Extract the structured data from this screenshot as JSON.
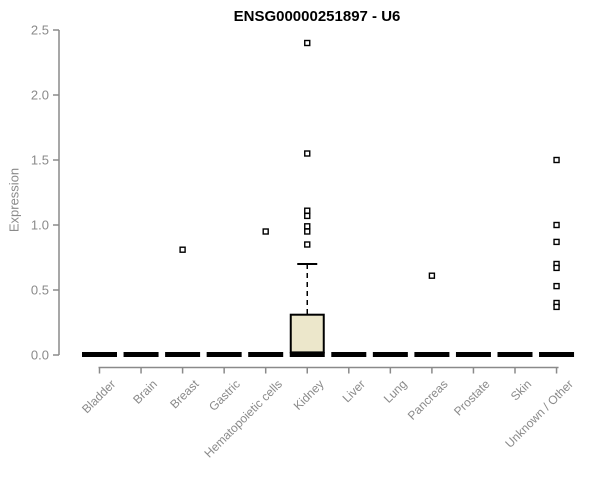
{
  "chart_data": {
    "type": "boxplot",
    "title": "ENSG00000251897 - U6",
    "xlabel": "",
    "ylabel": "Expression",
    "ylim": [
      0.0,
      2.5
    ],
    "ytick_step": 0.5,
    "ytick_labels": [
      "0.0",
      "0.5",
      "1.0",
      "1.5",
      "2.0",
      "2.5"
    ],
    "grid": "off",
    "legend": "none",
    "categories": [
      "Bladder",
      "Brain",
      "Breast",
      "Gastric",
      "Hematopoietic cells",
      "Kidney",
      "Liver",
      "Lung",
      "Pancreas",
      "Prostate",
      "Skin",
      "Unknown / Other"
    ],
    "boxes": [
      {
        "category": "Bladder",
        "median": 0.0,
        "q1": 0.0,
        "q3": 0.0,
        "whisker_low": 0.0,
        "whisker_high": 0.0,
        "outliers": []
      },
      {
        "category": "Brain",
        "median": 0.0,
        "q1": 0.0,
        "q3": 0.0,
        "whisker_low": 0.0,
        "whisker_high": 0.0,
        "outliers": []
      },
      {
        "category": "Breast",
        "median": 0.0,
        "q1": 0.0,
        "q3": 0.0,
        "whisker_low": 0.0,
        "whisker_high": 0.0,
        "outliers": [
          0.81
        ]
      },
      {
        "category": "Gastric",
        "median": 0.0,
        "q1": 0.0,
        "q3": 0.0,
        "whisker_low": 0.0,
        "whisker_high": 0.0,
        "outliers": []
      },
      {
        "category": "Hematopoietic cells",
        "median": 0.0,
        "q1": 0.0,
        "q3": 0.0,
        "whisker_low": 0.0,
        "whisker_high": 0.0,
        "outliers": [
          0.95
        ]
      },
      {
        "category": "Kidney",
        "median": 0.0,
        "q1": 0.02,
        "q3": 0.31,
        "whisker_low": 0.0,
        "whisker_high": 0.7,
        "outliers": [
          2.4,
          1.55,
          1.11,
          1.07,
          0.99,
          0.95,
          0.85
        ]
      },
      {
        "category": "Liver",
        "median": 0.0,
        "q1": 0.0,
        "q3": 0.0,
        "whisker_low": 0.0,
        "whisker_high": 0.0,
        "outliers": []
      },
      {
        "category": "Lung",
        "median": 0.0,
        "q1": 0.0,
        "q3": 0.0,
        "whisker_low": 0.0,
        "whisker_high": 0.0,
        "outliers": []
      },
      {
        "category": "Pancreas",
        "median": 0.0,
        "q1": 0.0,
        "q3": 0.0,
        "whisker_low": 0.0,
        "whisker_high": 0.0,
        "outliers": [
          0.61
        ]
      },
      {
        "category": "Prostate",
        "median": 0.0,
        "q1": 0.0,
        "q3": 0.0,
        "whisker_low": 0.0,
        "whisker_high": 0.0,
        "outliers": []
      },
      {
        "category": "Skin",
        "median": 0.0,
        "q1": 0.0,
        "q3": 0.0,
        "whisker_low": 0.0,
        "whisker_high": 0.0,
        "outliers": []
      },
      {
        "category": "Unknown / Other",
        "median": 0.0,
        "q1": 0.0,
        "q3": 0.0,
        "whisker_low": 0.0,
        "whisker_high": 0.0,
        "outliers": [
          1.5,
          1.0,
          0.87,
          0.7,
          0.67,
          0.53,
          0.4,
          0.37
        ]
      }
    ]
  },
  "colors": {
    "title": "#000000",
    "axis": "#8a8a8a",
    "tick_text": "#8a8a8a",
    "box_fill": "#ece7cb",
    "box_stroke": "#000000",
    "median_bar": "#000000",
    "whisker": "#000000",
    "outlier_stroke": "#000000",
    "outlier_fill": "#ffffff"
  }
}
